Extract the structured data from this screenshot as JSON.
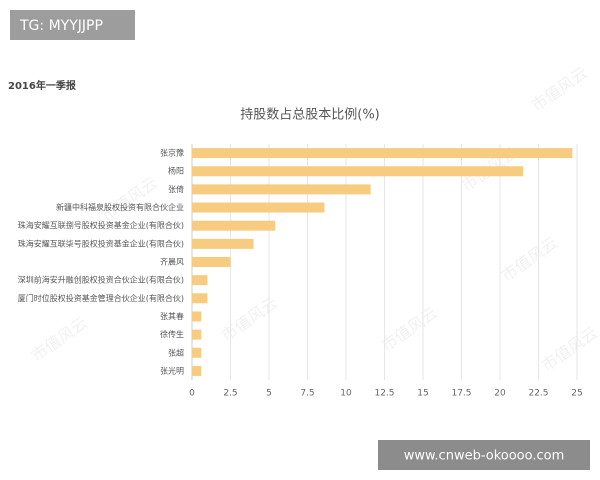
{
  "badge": "TG: MYYJJPP",
  "footer": "www.cnweb-okoooo.com",
  "watermark": "市值风云",
  "chart_data": {
    "type": "bar",
    "orientation": "horizontal",
    "subtitle": "2016年一季报",
    "title": "持股数占总股本比例(%)",
    "categories": [
      "张京豫",
      "杨阳",
      "张倚",
      "新疆中科福泉股权投资有限合伙企业",
      "珠海安耀互联捌号股权投资基金企业(有限合伙)",
      "珠海安耀互联柒号股权投资基金企业(有限合伙)",
      "齐晨风",
      "深圳前海安升融创股权投资合伙企业(有限合伙)",
      "厦门时位股权投资基金管理合伙企业(有限合伙)",
      "张其春",
      "徐传生",
      "张超",
      "张光明"
    ],
    "values": [
      24.7,
      21.5,
      11.6,
      8.6,
      5.4,
      4.0,
      2.5,
      1.0,
      1.0,
      0.6,
      0.6,
      0.6,
      0.6
    ],
    "color": "#f7cb80",
    "xlim": [
      0,
      25
    ],
    "xticks": [
      0,
      2.5,
      5,
      7.5,
      10,
      12.5,
      15,
      17.5,
      20,
      22.5,
      25
    ],
    "grid": true
  }
}
